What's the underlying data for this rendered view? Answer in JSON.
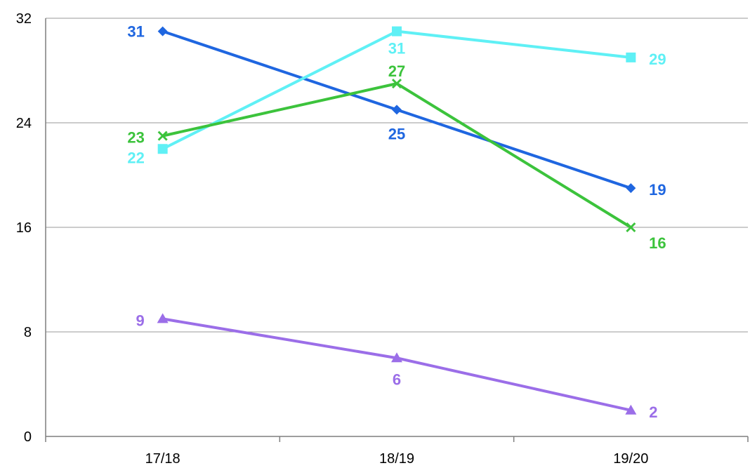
{
  "chart_data": {
    "type": "line",
    "title": "",
    "xlabel": "",
    "ylabel": "",
    "categories": [
      "17/18",
      "18/19",
      "19/20"
    ],
    "ylim": [
      0,
      32
    ],
    "yticks": [
      0,
      8,
      16,
      24,
      32
    ],
    "grid": "horizontal",
    "legend": "none",
    "series": [
      {
        "values": [
          31,
          25,
          19
        ],
        "color": "#1f66e0",
        "marker": "diamond"
      },
      {
        "values": [
          22,
          31,
          29
        ],
        "color": "#5ff0f5",
        "marker": "square"
      },
      {
        "values": [
          23,
          27,
          16
        ],
        "color": "#3cc33c",
        "marker": "x"
      },
      {
        "values": [
          9,
          6,
          2
        ],
        "color": "#9b6ee8",
        "marker": "triangle"
      }
    ],
    "data_labels": [
      [
        "31",
        "25",
        "19"
      ],
      [
        "22",
        "31",
        "29"
      ],
      [
        "23",
        "27",
        "16"
      ],
      [
        "9",
        "6",
        "2"
      ]
    ]
  }
}
